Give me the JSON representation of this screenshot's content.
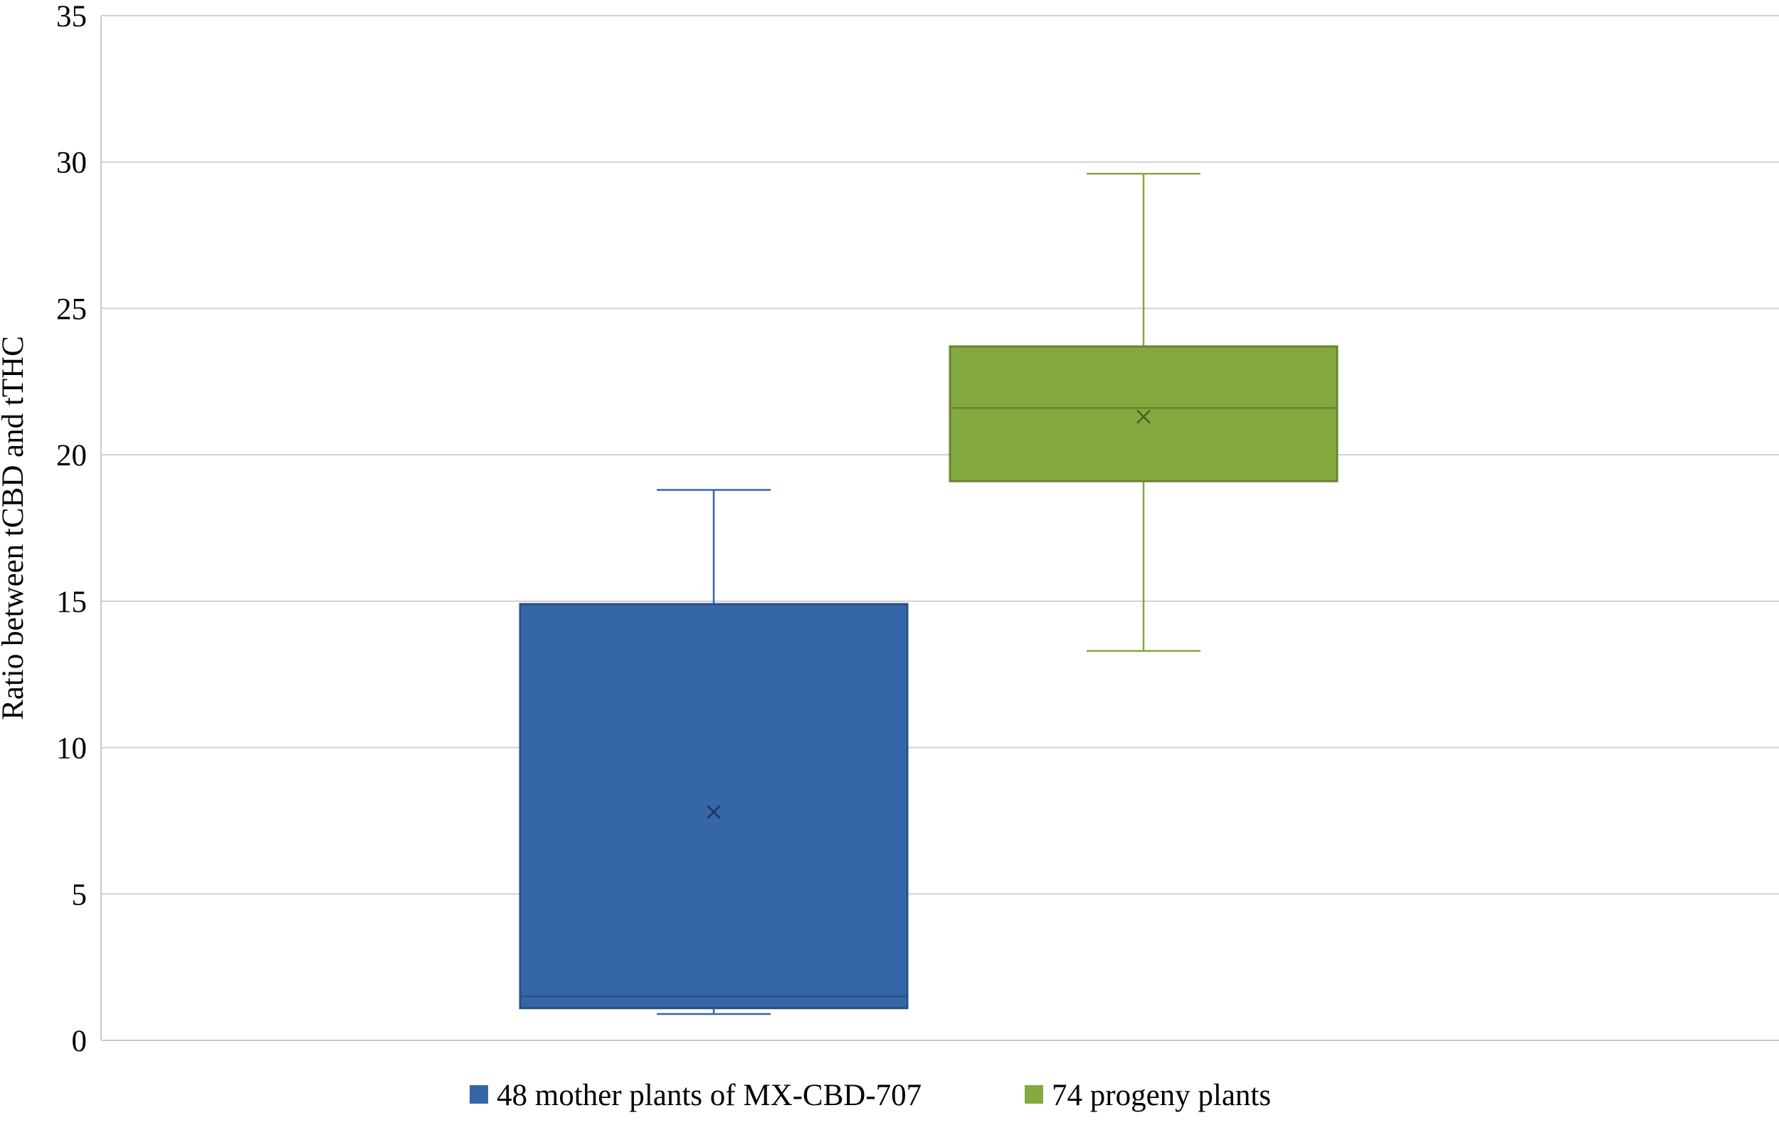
{
  "chart_data": {
    "type": "box",
    "title": "",
    "xlabel": "",
    "ylabel": "Ratio between tCBD and tTHC",
    "ylim": [
      0,
      35
    ],
    "yticks": [
      0,
      5,
      10,
      15,
      20,
      25,
      30,
      35
    ],
    "grid": true,
    "legend_position": "bottom",
    "series": [
      {
        "name": "48 mother plants of MX-CBD-707",
        "color": "#3566a8",
        "min": 0.9,
        "q1": 1.1,
        "median": 1.5,
        "q3": 14.9,
        "max": 18.8,
        "mean": 7.8
      },
      {
        "name": "74 progeny plants",
        "color": "#84a93e",
        "min": 13.3,
        "q1": 19.1,
        "median": 21.6,
        "q3": 23.7,
        "max": 29.6,
        "mean": 21.3
      }
    ]
  }
}
